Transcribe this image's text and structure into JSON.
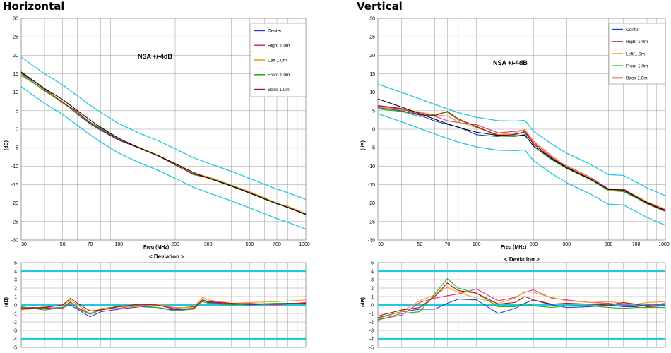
{
  "chart_data": [
    {
      "type": "line",
      "title": "Horizontal",
      "annotation": "NSA +/-4dB",
      "xlabel": "Freq (MHz)",
      "ylabel": "(dB)",
      "xscale": "log",
      "xlim": [
        30,
        1000
      ],
      "ylim": [
        -30,
        30
      ],
      "x_ticks": [
        30,
        50,
        70,
        100,
        200,
        300,
        500,
        700,
        1000
      ],
      "y_ticks": [
        30,
        25,
        20,
        15,
        10,
        5,
        0,
        -5,
        -10,
        -15,
        -20,
        -25,
        -30
      ],
      "grid": true,
      "legend_position": "top-right",
      "x": [
        30,
        40,
        50,
        60,
        70,
        80,
        100,
        130,
        160,
        200,
        250,
        300,
        400,
        500,
        600,
        700,
        800,
        1000
      ],
      "theoretical": [
        15.5,
        11.0,
        8.0,
        5.0,
        2.5,
        0.5,
        -2.5,
        -5.2,
        -7.0,
        -9.3,
        -11.7,
        -13.2,
        -15.4,
        -17.3,
        -18.9,
        -20.2,
        -21.2,
        -23.0
      ],
      "limits": [
        {
          "values": [
            19.5,
            15.0,
            12.0,
            9.0,
            6.5,
            4.5,
            1.5,
            -1.2,
            -3.0,
            -5.3,
            -7.7,
            -9.2,
            -11.4,
            -13.3,
            -14.9,
            -16.2,
            -17.2,
            -19.0
          ]
        },
        {
          "values": [
            11.5,
            7.0,
            4.0,
            1.0,
            -1.5,
            -3.5,
            -6.5,
            -9.2,
            -11.0,
            -13.3,
            -15.7,
            -17.2,
            -19.4,
            -21.3,
            -22.9,
            -24.2,
            -25.2,
            -27.0
          ]
        }
      ],
      "series": [
        {
          "name": "Center",
          "color": "#1f3fd0",
          "values": [
            15.3,
            10.3,
            7.4,
            4.0,
            1.5,
            -0.3,
            -3.0,
            -5.2,
            -7.0,
            -9.5,
            -12.0,
            -12.9,
            -15.2,
            -17.0,
            -18.7,
            -20.0,
            -21.0,
            -23.0
          ]
        },
        {
          "name": "Right 1.0m",
          "color": "#e0308a",
          "values": [
            14.6,
            10.6,
            7.2,
            4.7,
            1.8,
            0.2,
            -2.8,
            -5.0,
            -7.1,
            -9.6,
            -12.2,
            -13.0,
            -15.3,
            -17.0,
            -18.6,
            -20.1,
            -21.0,
            -23.1
          ]
        },
        {
          "name": "Left 1.0m",
          "color": "#f0a020",
          "values": [
            14.4,
            10.8,
            7.0,
            4.5,
            2.0,
            0.1,
            -2.6,
            -5.3,
            -7.2,
            -9.4,
            -12.1,
            -12.8,
            -15.1,
            -16.9,
            -18.5,
            -20.2,
            -20.8,
            -22.8
          ]
        },
        {
          "name": "Front 1.0m",
          "color": "#20b020",
          "values": [
            15.0,
            10.4,
            7.2,
            4.2,
            1.9,
            0.3,
            -2.7,
            -5.1,
            -7.1,
            -9.5,
            -12.3,
            -13.1,
            -15.2,
            -17.1,
            -18.7,
            -20.0,
            -21.1,
            -23.2
          ]
        },
        {
          "name": "Back 1.0m",
          "color": "#b01010",
          "values": [
            15.5,
            10.9,
            7.3,
            4.6,
            1.6,
            0.0,
            -2.9,
            -5.2,
            -7.0,
            -9.7,
            -12.1,
            -13.2,
            -15.3,
            -17.2,
            -18.8,
            -20.1,
            -21.2,
            -23.1
          ]
        }
      ],
      "deviation": {
        "title": "< Deviation >",
        "ylim": [
          -5,
          5
        ],
        "y_ticks": [
          5,
          4,
          3,
          2,
          1,
          0,
          -1,
          -2,
          -3,
          -4,
          -5
        ],
        "limit_lines": [
          4,
          -4,
          0
        ],
        "x": [
          30,
          40,
          50,
          55,
          60,
          70,
          80,
          100,
          130,
          160,
          200,
          250,
          280,
          300,
          400,
          500,
          700,
          1000
        ],
        "series": [
          {
            "name": "Center",
            "color": "#1f3fd0",
            "values": [
              -0.5,
              -0.4,
              -0.3,
              0.0,
              -0.5,
              -1.4,
              -0.8,
              -0.5,
              -0.2,
              -0.3,
              -0.6,
              -0.4,
              0.6,
              0.3,
              0.1,
              0.0,
              0.2,
              0.2
            ]
          },
          {
            "name": "Right 1.0m",
            "color": "#e0308a",
            "values": [
              -0.3,
              -0.3,
              -0.4,
              0.3,
              -0.3,
              -1.0,
              -0.5,
              -0.4,
              0.0,
              0.0,
              -0.4,
              -0.2,
              0.5,
              0.4,
              0.1,
              0.2,
              0.0,
              0.3
            ]
          },
          {
            "name": "Left 1.0m",
            "color": "#f0a020",
            "values": [
              -0.6,
              -0.2,
              -0.1,
              0.6,
              0.0,
              -1.0,
              -0.4,
              -0.2,
              -0.2,
              0.1,
              -0.3,
              -0.3,
              0.9,
              0.6,
              0.2,
              0.3,
              0.4,
              0.6
            ]
          },
          {
            "name": "Front 1.0m",
            "color": "#20b020",
            "values": [
              -0.2,
              -0.6,
              -0.3,
              0.4,
              -0.4,
              -1.1,
              -0.6,
              -0.1,
              -0.1,
              -0.3,
              -0.7,
              -0.5,
              0.4,
              0.2,
              0.0,
              0.1,
              0.2,
              0.1
            ]
          },
          {
            "name": "Back 1.0m",
            "color": "#b01010",
            "values": [
              -0.4,
              -0.3,
              0.0,
              0.8,
              0.2,
              -0.7,
              -0.6,
              -0.2,
              0.1,
              0.0,
              -0.5,
              -0.4,
              0.6,
              0.4,
              0.2,
              0.1,
              0.1,
              0.2
            ]
          }
        ]
      }
    },
    {
      "type": "line",
      "title": "Vertical",
      "annotation": "NSA +/-4dB",
      "xlabel": "Freq (MHz)",
      "ylabel": "(dB)",
      "xscale": "log",
      "xlim": [
        30,
        1000
      ],
      "ylim": [
        -30,
        30
      ],
      "x_ticks": [
        30,
        50,
        70,
        100,
        200,
        300,
        500,
        700,
        1000
      ],
      "y_ticks": [
        30,
        25,
        20,
        15,
        10,
        5,
        0,
        -5,
        -10,
        -15,
        -20,
        -25,
        -30
      ],
      "grid": true,
      "legend_position": "top-right",
      "x": [
        30,
        40,
        50,
        60,
        70,
        80,
        100,
        130,
        160,
        180,
        200,
        250,
        300,
        400,
        500,
        600,
        700,
        800,
        1000
      ],
      "theoretical": [
        8.2,
        6.0,
        4.2,
        2.7,
        1.5,
        0.5,
        -0.8,
        -1.7,
        -1.8,
        -1.6,
        -4.5,
        -8.0,
        -10.5,
        -13.5,
        -16.3,
        -16.5,
        -18.3,
        -19.9,
        -22.0
      ],
      "limits": [
        {
          "values": [
            12.2,
            10.0,
            8.2,
            6.7,
            5.5,
            4.5,
            3.2,
            2.3,
            2.2,
            2.4,
            -0.5,
            -4.0,
            -6.5,
            -9.5,
            -12.3,
            -12.5,
            -14.3,
            -15.9,
            -18.0
          ]
        },
        {
          "values": [
            4.2,
            2.0,
            0.2,
            -1.3,
            -2.5,
            -3.5,
            -4.8,
            -5.7,
            -5.8,
            -5.6,
            -8.5,
            -12.0,
            -14.5,
            -17.5,
            -20.3,
            -20.5,
            -22.3,
            -23.9,
            -26.0
          ]
        }
      ],
      "series": [
        {
          "name": "Center",
          "color": "#1f3fd0",
          "values": [
            5.8,
            5.0,
            3.8,
            2.2,
            1.3,
            0.6,
            -1.5,
            -2.0,
            -1.3,
            -0.9,
            -4.0,
            -7.8,
            -10.2,
            -13.3,
            -16.2,
            -16.8,
            -18.5,
            -19.7,
            -22.0
          ]
        },
        {
          "name": "Right 1.0m",
          "color": "#e0308a",
          "values": [
            6.2,
            5.4,
            4.5,
            3.5,
            2.3,
            1.8,
            1.2,
            -1.0,
            -0.6,
            -0.2,
            -3.5,
            -7.5,
            -9.9,
            -13.0,
            -16.1,
            -16.3,
            -18.4,
            -20.0,
            -21.8
          ]
        },
        {
          "name": "Left 1.0m",
          "color": "#f0a020",
          "values": [
            6.0,
            5.2,
            4.7,
            3.8,
            3.6,
            2.0,
            0.4,
            -1.5,
            -1.0,
            0.0,
            -3.2,
            -7.2,
            -10.0,
            -13.2,
            -16.4,
            -16.6,
            -18.0,
            -19.6,
            -21.6
          ]
        },
        {
          "name": "Front 1.0m",
          "color": "#20b020",
          "values": [
            5.5,
            4.8,
            3.4,
            4.0,
            4.6,
            2.5,
            0.8,
            -1.9,
            -2.0,
            -1.4,
            -4.6,
            -8.3,
            -10.6,
            -13.6,
            -16.6,
            -16.9,
            -18.6,
            -20.2,
            -22.3
          ]
        },
        {
          "name": "Back 1.0m",
          "color": "#b01010",
          "values": [
            6.4,
            5.6,
            3.9,
            3.7,
            4.8,
            2.8,
            0.6,
            -1.6,
            -1.5,
            -0.6,
            -3.9,
            -7.9,
            -10.3,
            -13.4,
            -16.3,
            -16.2,
            -18.2,
            -20.1,
            -22.1
          ]
        }
      ],
      "deviation": {
        "title": "< Deviation >",
        "ylim": [
          -5,
          5
        ],
        "y_ticks": [
          5,
          4,
          3,
          2,
          1,
          0,
          -1,
          -2,
          -3,
          -4,
          -5
        ],
        "limit_lines": [
          4,
          -4,
          0
        ],
        "x": [
          30,
          40,
          50,
          60,
          70,
          80,
          100,
          130,
          160,
          180,
          200,
          250,
          300,
          400,
          500,
          600,
          700,
          800,
          1000
        ],
        "series": [
          {
            "name": "Center",
            "color": "#1f3fd0",
            "values": [
              -1.5,
              -0.8,
              -0.5,
              -0.5,
              0.2,
              0.7,
              0.6,
              -1.0,
              -0.4,
              0.2,
              0.6,
              0.0,
              -0.3,
              -0.2,
              0.0,
              -0.2,
              -0.2,
              0.0,
              0.0
            ]
          },
          {
            "name": "Right 1.0m",
            "color": "#e0308a",
            "values": [
              -1.7,
              -1.2,
              0.3,
              0.8,
              1.1,
              1.3,
              1.9,
              0.5,
              0.9,
              1.5,
              1.8,
              0.8,
              0.6,
              0.3,
              0.2,
              0.0,
              -0.1,
              -0.1,
              0.2
            ]
          },
          {
            "name": "Left 1.0m",
            "color": "#f0a020",
            "values": [
              -1.6,
              -0.8,
              0.5,
              1.2,
              2.1,
              1.5,
              0.8,
              0.2,
              0.8,
              1.6,
              1.5,
              0.9,
              0.5,
              0.3,
              0.4,
              0.2,
              0.1,
              0.3,
              0.4
            ]
          },
          {
            "name": "Front 1.0m",
            "color": "#20b020",
            "values": [
              -1.8,
              -1.0,
              -0.8,
              1.3,
              3.1,
              2.0,
              1.4,
              -0.2,
              -0.2,
              0.2,
              -0.1,
              -0.3,
              -0.1,
              -0.1,
              -0.3,
              -0.4,
              -0.3,
              -0.3,
              -0.3
            ]
          },
          {
            "name": "Back 1.0m",
            "color": "#b01010",
            "values": [
              -1.3,
              -0.6,
              -0.3,
              1.0,
              2.6,
              1.7,
              1.4,
              0.1,
              0.3,
              1.0,
              0.6,
              0.1,
              0.2,
              0.1,
              0.0,
              0.3,
              0.1,
              -0.2,
              -0.1
            ]
          }
        ]
      }
    }
  ]
}
